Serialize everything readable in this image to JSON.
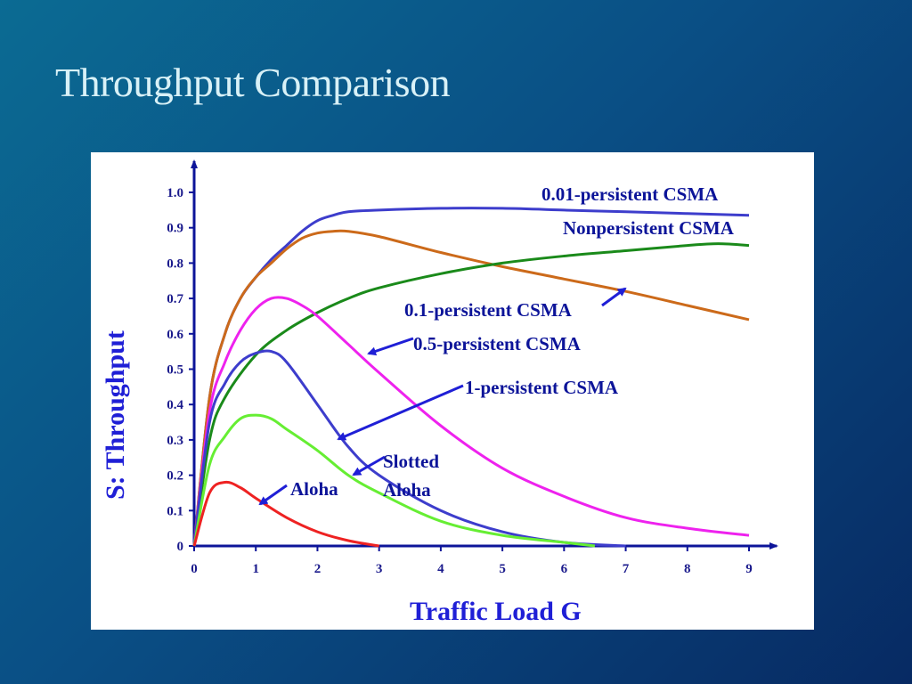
{
  "slide": {
    "title": "Throughput Comparison"
  },
  "chart_data": {
    "type": "line",
    "xlabel": "Traffic Load G",
    "ylabel": "S: Throughput",
    "xlim": [
      0,
      9
    ],
    "ylim": [
      0,
      1.0
    ],
    "x_ticks": [
      "0",
      "1",
      "2",
      "3",
      "4",
      "5",
      "6",
      "7",
      "8",
      "9"
    ],
    "y_ticks": [
      "0",
      "0.1",
      "0.2",
      "0.3",
      "0.4",
      "0.5",
      "0.6",
      "0.7",
      "0.8",
      "0.9",
      "1.0"
    ],
    "series": [
      {
        "name": "0.01-persistent CSMA",
        "color": "#3d3dcc",
        "x": [
          0,
          0.25,
          0.5,
          0.75,
          1,
          1.25,
          1.5,
          1.75,
          2,
          2.25,
          2.5,
          3,
          4,
          5,
          6,
          7,
          8,
          9
        ],
        "y": [
          0,
          0.42,
          0.6,
          0.7,
          0.76,
          0.81,
          0.85,
          0.89,
          0.92,
          0.935,
          0.945,
          0.95,
          0.955,
          0.955,
          0.95,
          0.945,
          0.94,
          0.935
        ]
      },
      {
        "name": "Nonpersistent CSMA",
        "color": "#cc6a1a",
        "x": [
          0,
          0.25,
          0.5,
          0.75,
          1,
          1.25,
          1.5,
          1.75,
          2,
          2.25,
          2.5,
          3,
          4,
          5,
          6,
          7,
          8,
          9
        ],
        "y": [
          0,
          0.42,
          0.6,
          0.7,
          0.76,
          0.8,
          0.84,
          0.87,
          0.885,
          0.89,
          0.89,
          0.875,
          0.83,
          0.79,
          0.755,
          0.72,
          0.68,
          0.64
        ]
      },
      {
        "name": "0.1-persistent CSMA",
        "color": "#1a8a1a",
        "x": [
          0,
          0.25,
          0.5,
          1,
          1.5,
          2,
          2.5,
          3,
          4,
          5,
          6,
          7,
          8,
          8.5,
          9
        ],
        "y": [
          0,
          0.3,
          0.42,
          0.54,
          0.61,
          0.66,
          0.7,
          0.73,
          0.77,
          0.8,
          0.82,
          0.835,
          0.85,
          0.855,
          0.85
        ]
      },
      {
        "name": "0.5-persistent CSMA",
        "color": "#ee22ee",
        "x": [
          0,
          0.25,
          0.5,
          0.75,
          1,
          1.25,
          1.5,
          1.75,
          2,
          2.5,
          3,
          4,
          5,
          6,
          7,
          8,
          9
        ],
        "y": [
          0,
          0.38,
          0.52,
          0.61,
          0.67,
          0.7,
          0.7,
          0.68,
          0.65,
          0.57,
          0.49,
          0.34,
          0.22,
          0.14,
          0.08,
          0.05,
          0.03
        ]
      },
      {
        "name": "1-persistent CSMA",
        "color": "#3d3dcc",
        "x": [
          0,
          0.25,
          0.5,
          0.75,
          1,
          1.25,
          1.5,
          2,
          2.5,
          3,
          4,
          5,
          6,
          7
        ],
        "y": [
          0,
          0.35,
          0.46,
          0.52,
          0.545,
          0.55,
          0.52,
          0.4,
          0.28,
          0.2,
          0.1,
          0.04,
          0.01,
          0
        ]
      },
      {
        "name": "Slotted Aloha",
        "color": "#66ee33",
        "x": [
          0,
          0.25,
          0.5,
          0.75,
          1,
          1.25,
          1.5,
          2,
          2.5,
          3,
          4,
          5,
          6,
          6.5
        ],
        "y": [
          0,
          0.23,
          0.31,
          0.36,
          0.37,
          0.36,
          0.33,
          0.27,
          0.2,
          0.15,
          0.07,
          0.03,
          0.01,
          0
        ]
      },
      {
        "name": "Aloha",
        "color": "#ee2222",
        "x": [
          0,
          0.25,
          0.5,
          0.75,
          1,
          1.5,
          2,
          2.5,
          3
        ],
        "y": [
          0,
          0.15,
          0.18,
          0.165,
          0.135,
          0.08,
          0.04,
          0.015,
          0
        ]
      }
    ]
  },
  "annotations": {
    "p001": "0.01-persistent CSMA",
    "nonpersistent": "Nonpersistent CSMA",
    "p01": "0.1-persistent CSMA",
    "p05": "0.5-persistent CSMA",
    "p1": "1-persistent CSMA",
    "slotted_line1": "Slotted",
    "slotted_line2": "Aloha",
    "aloha": "Aloha"
  }
}
